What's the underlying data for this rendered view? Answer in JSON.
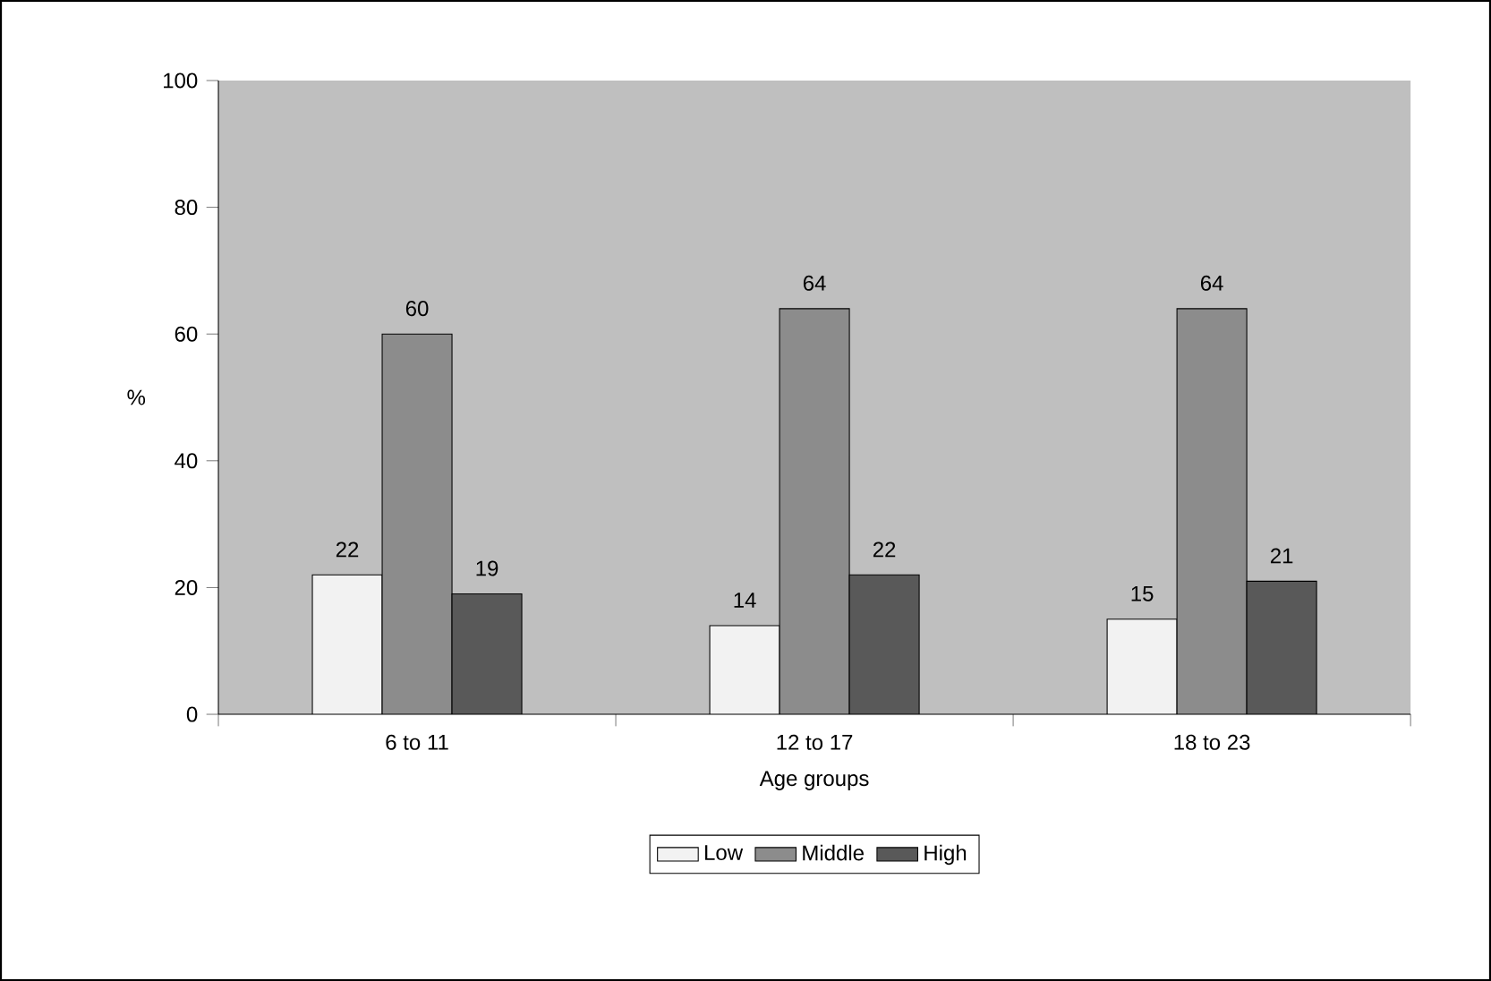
{
  "chart_data": {
    "type": "bar",
    "xlabel": "Age groups",
    "ylabel": "%",
    "categories": [
      "6 to 11",
      "12 to 17",
      "18 to 23"
    ],
    "series": [
      {
        "name": "Low",
        "color": "#f2f2f2",
        "values": [
          22,
          14,
          15
        ]
      },
      {
        "name": "Middle",
        "color": "#8c8c8c",
        "values": [
          60,
          64,
          64
        ]
      },
      {
        "name": "High",
        "color": "#595959",
        "values": [
          19,
          22,
          21
        ]
      }
    ],
    "ylim": [
      0,
      100
    ],
    "yticks": [
      0,
      20,
      40,
      60,
      80,
      100
    ],
    "grid": false,
    "legend": "bottom",
    "data_labels": true
  }
}
